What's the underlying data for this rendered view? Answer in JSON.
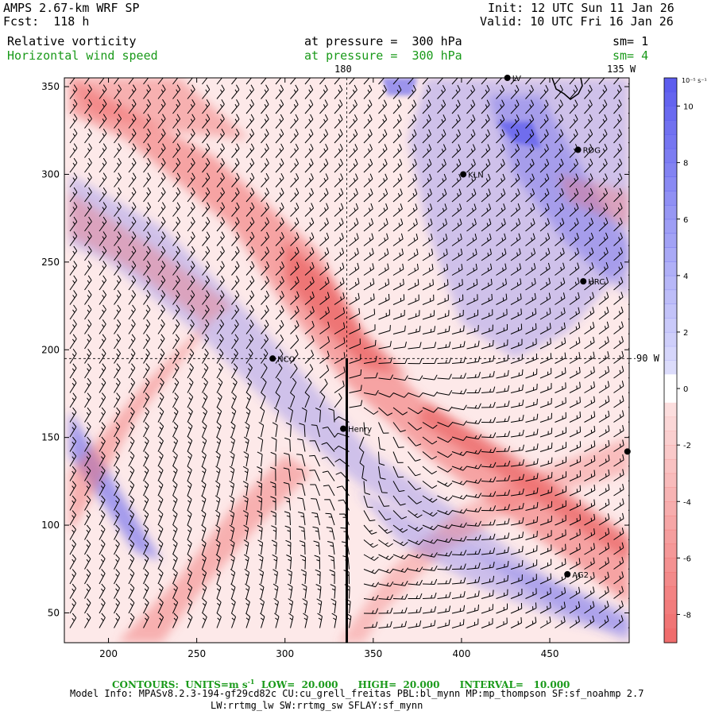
{
  "header": {
    "title": "AMPS 2.67-km WRF SP",
    "fcst": "Fcst:  118 h",
    "init": "Init: 12 UTC Sun 11 Jan 26",
    "valid": "Valid: 10 UTC Fri 16 Jan 26",
    "field1": "Relative vorticity",
    "field1_level": "at pressure =  300 hPa",
    "field1_sm": "sm= 1",
    "field2": "Horizontal wind speed",
    "field2_level": "at pressure =  300 hPa",
    "field2_sm": "sm= 4"
  },
  "map_labels": {
    "lon_180": "180",
    "lon_135w": "135 W",
    "lon_90w": "90 W"
  },
  "footer": {
    "contours": "CONTOURS:  UNITS=m s",
    "contours_sup": "-1",
    "low": "LOW=  20.000",
    "high": "HIGH=  20.000",
    "interval": "INTERVAL=   10.000",
    "model_info": "Model Info: MPASv8.2.3-194-gf29cd82c CU:cu_grell_freitas PBL:bl_mynn MP:mp_thompson SF:sf_noahmp 2.7",
    "model_info2": "LW:rrtmg_lw SW:rrtmg_sw SFLAY:sf_mynn"
  },
  "colors": {
    "positive": "#5a5aee",
    "negative": "#f06a6a",
    "barb": "#000000",
    "contour_label": "#1a9a1a"
  },
  "chart_data": {
    "type": "heatmap",
    "title": "Relative vorticity / Horizontal wind speed at 300 hPa",
    "x_ticks": [
      200,
      250,
      300,
      350,
      400,
      450
    ],
    "y_ticks": [
      50,
      100,
      150,
      200,
      250,
      300,
      350
    ],
    "xlim": [
      175,
      495
    ],
    "ylim": [
      33,
      355
    ],
    "colorbar": {
      "unit": "10⁻⁵ s⁻¹",
      "ticks": [
        10,
        8,
        6,
        4,
        2,
        0,
        -2,
        -4,
        -6,
        -8
      ],
      "range": [
        -9,
        11
      ]
    },
    "stations": [
      {
        "name": "NCO",
        "x": 293,
        "y": 195
      },
      {
        "name": "Henry",
        "x": 333,
        "y": 155
      },
      {
        "name": "KLN",
        "x": 401,
        "y": 300
      },
      {
        "name": "RDG",
        "x": 466,
        "y": 314
      },
      {
        "name": "HRC",
        "x": 469,
        "y": 239
      },
      {
        "name": "AG2",
        "x": 460,
        "y": 72
      },
      {
        "name": "LV",
        "x": 426,
        "y": 355
      },
      {
        "name": "",
        "x": 494,
        "y": 142
      }
    ],
    "cross_section": {
      "x": 335,
      "y_from": 33,
      "y_to": 195
    },
    "meridian_180_x": 335,
    "lat_line_y": 195
  }
}
